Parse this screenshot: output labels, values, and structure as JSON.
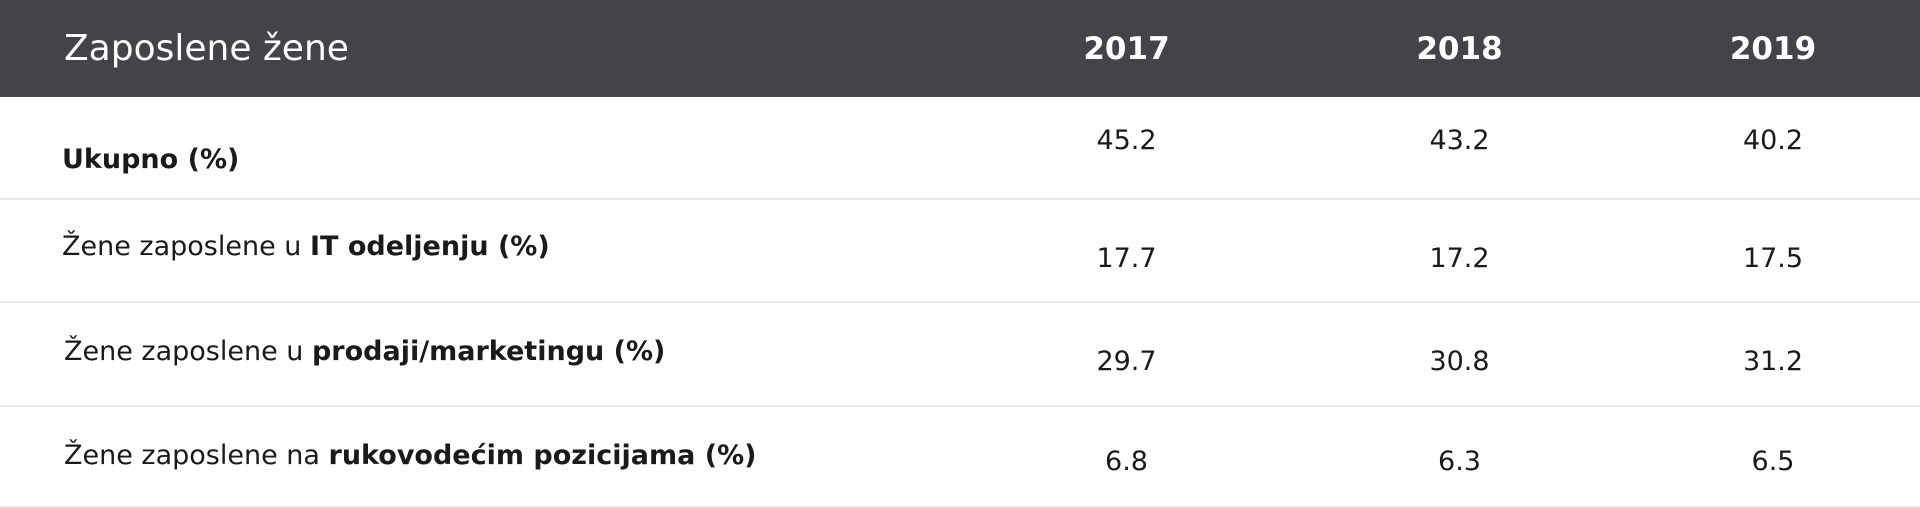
{
  "table": {
    "title": "Zaposlene žene",
    "years": [
      "2017",
      "2018",
      "2019"
    ],
    "rows": [
      {
        "label_plain": "",
        "label_bold": "Ukupno (%)",
        "values": [
          "45.2",
          "43.2",
          "40.2"
        ]
      },
      {
        "label_plain": "Žene zaposlene u ",
        "label_bold": "IT odeljenju (%)",
        "values": [
          "17.7",
          "17.2",
          "17.5"
        ]
      },
      {
        "label_plain": "Žene zaposlene u ",
        "label_bold": "prodaji/marketingu (%)",
        "values": [
          "29.7",
          "30.8",
          "31.2"
        ]
      },
      {
        "label_plain": "Žene zaposlene na ",
        "label_bold": "rukovodećim pozicijama (%)",
        "values": [
          "6.8",
          "6.3",
          "6.5"
        ]
      }
    ]
  }
}
